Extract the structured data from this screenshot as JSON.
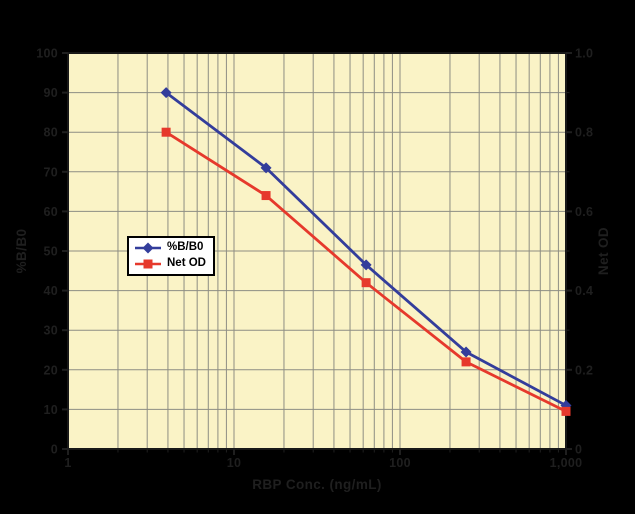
{
  "chart_data": {
    "type": "line",
    "title": "",
    "xlabel": "RBP Conc. (ng/mL)",
    "ylabel_left": "%B/B0",
    "ylabel_right": "Net OD",
    "x_scale": "log",
    "xlim": [
      1,
      1000
    ],
    "ylim_left": [
      0,
      100
    ],
    "ylim_right": [
      0,
      1.0
    ],
    "grid": true,
    "legend_position": "inside-upper-left",
    "x": [
      3.9,
      15.6,
      62.5,
      250,
      1000
    ],
    "series": [
      {
        "name": "%B/B0",
        "axis": "left",
        "color": "#333D9B",
        "marker": "diamond",
        "values": [
          90,
          71,
          46.5,
          24.5,
          11
        ]
      },
      {
        "name": "Net OD",
        "axis": "right",
        "color": "#E6392C",
        "marker": "square",
        "values": [
          0.8,
          0.64,
          0.42,
          0.22,
          0.095
        ]
      }
    ],
    "x_ticks": [
      {
        "value": 1,
        "label": "1"
      },
      {
        "value": 10,
        "label": "10"
      },
      {
        "value": 100,
        "label": "100"
      },
      {
        "value": 1000,
        "label": "1,000"
      }
    ],
    "y_ticks_left": [
      {
        "value": 0,
        "label": "0"
      },
      {
        "value": 10,
        "label": "10"
      },
      {
        "value": 20,
        "label": "20"
      },
      {
        "value": 30,
        "label": "30"
      },
      {
        "value": 40,
        "label": "40"
      },
      {
        "value": 50,
        "label": "50"
      },
      {
        "value": 60,
        "label": "60"
      },
      {
        "value": 70,
        "label": "70"
      },
      {
        "value": 80,
        "label": "80"
      },
      {
        "value": 90,
        "label": "90"
      },
      {
        "value": 100,
        "label": "100"
      }
    ],
    "y_ticks_right": [
      {
        "value": 0,
        "label": "0"
      },
      {
        "value": 0.2,
        "label": "0.2"
      },
      {
        "value": 0.4,
        "label": "0.4"
      },
      {
        "value": 0.6,
        "label": "0.6"
      },
      {
        "value": 0.8,
        "label": "0.8"
      },
      {
        "value": 1.0,
        "label": "1.0"
      }
    ],
    "colors": {
      "outer_bg": "#000000",
      "plot_bg": "#FAF3C6",
      "grid": "#8D8D83",
      "border": "#181818",
      "tick_label": "#1F1F1F",
      "legend_bg": "#FFFFFF",
      "legend_border": "#000000",
      "legend_text": "#000000"
    }
  }
}
